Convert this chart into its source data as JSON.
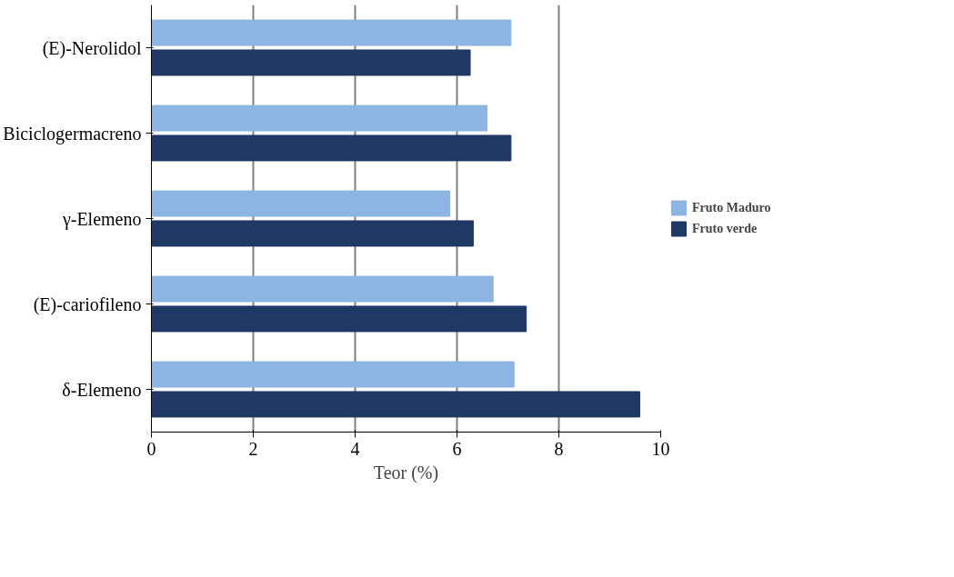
{
  "chart_data": {
    "type": "bar",
    "orientation": "horizontal",
    "xlabel": "Teor (%)",
    "categories": [
      "(E)-Nerolidol",
      "Biciclogermacreno",
      "γ-Elemeno",
      "(E)-cariofileno",
      "δ-Elemeno"
    ],
    "series": [
      {
        "name": "Fruto Maduro",
        "color": "#8db4e2",
        "values": [
          7.06,
          6.59,
          5.86,
          6.71,
          7.12
        ]
      },
      {
        "name": "Fruto verde",
        "color": "#1f3864",
        "values": [
          6.26,
          7.06,
          6.32,
          7.36,
          9.59
        ]
      }
    ],
    "xlim": [
      0,
      10
    ],
    "xticks": [
      0,
      2,
      4,
      6,
      8,
      10
    ],
    "grid": "x",
    "legend": "right"
  }
}
